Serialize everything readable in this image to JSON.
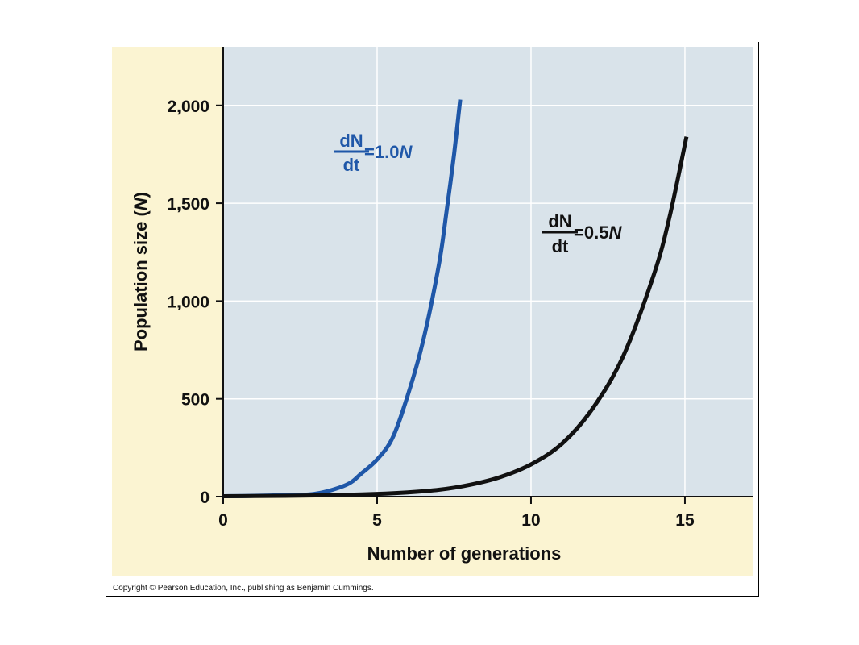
{
  "chart_data": {
    "type": "line",
    "xlabel": "Number of generations",
    "ylabel": {
      "main": "Population size (",
      "var": "N",
      "close": ")"
    },
    "xlim": [
      0,
      17.2
    ],
    "ylim": [
      0,
      2300
    ],
    "xticks": [
      0,
      5,
      10,
      15
    ],
    "xtick_labels": [
      "0",
      "5",
      "10",
      "15"
    ],
    "yticks": [
      0,
      500,
      1000,
      1500,
      2000
    ],
    "ytick_labels": [
      "0",
      "500",
      "1,000",
      "1,500",
      "2,000"
    ],
    "grid": true,
    "series": [
      {
        "name": "dN/dt = 1.0N",
        "color": "#1f57a8",
        "x": [
          0,
          1,
          2,
          3,
          4,
          4.5,
          5,
          5.5,
          6,
          6.5,
          7,
          7.25,
          7.5,
          7.7
        ],
        "y": [
          2,
          4,
          8,
          15,
          60,
          120,
          190,
          300,
          520,
          800,
          1180,
          1450,
          1750,
          2030
        ]
      },
      {
        "name": "dN/dt = 0.5N",
        "color": "#111111",
        "x": [
          0,
          1,
          2,
          3,
          4,
          5,
          6,
          7,
          8,
          9,
          10,
          11,
          12,
          13,
          14,
          14.5,
          15.05
        ],
        "y": [
          2,
          3,
          4,
          6,
          9,
          14,
          22,
          35,
          60,
          100,
          165,
          270,
          450,
          720,
          1140,
          1430,
          1840
        ]
      }
    ],
    "annotations": [
      {
        "d": "dN",
        "dt": "dt",
        "rhs_prefix": "=1.0",
        "rhs_var": "N",
        "color": "#1f57a8"
      },
      {
        "d": "dN",
        "dt": "dt",
        "rhs_prefix": "=0.5",
        "rhs_var": "N",
        "color": "#111111"
      }
    ]
  },
  "colors": {
    "plot_background": "#d9e3ea",
    "outer_background": "#fbf4d2",
    "gridline": "#ffffff"
  },
  "copyright": "Copyright © Pearson Education, Inc., publishing as Benjamin Cummings."
}
